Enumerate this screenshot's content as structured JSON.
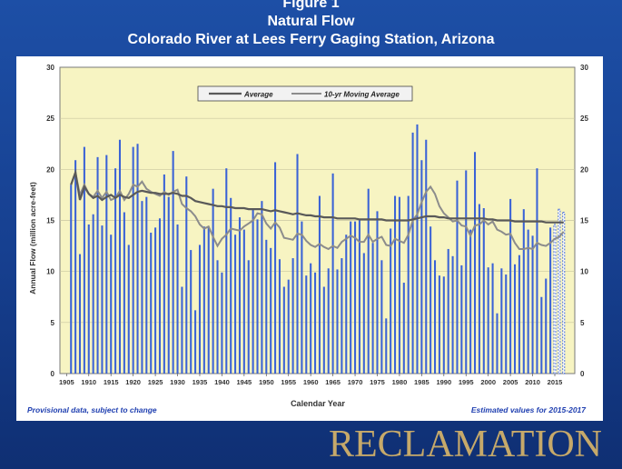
{
  "header": {
    "figure_label": "Figure 1",
    "title": "Natural Flow",
    "subtitle": "Colorado River at Lees Ferry Gaging Station, Arizona"
  },
  "logo_text": "RECLAMATION",
  "colors": {
    "background": "#1d4fa6",
    "plot_area": "#f7f4c2",
    "bars": "#3a62d6",
    "average_line": "#595959",
    "moving_average_line": "#8c8c8c",
    "logo": "#c6a96a"
  },
  "chart_data": {
    "type": "bar",
    "title": "Natural Flow",
    "subtitle": "Colorado River at Lees Ferry Gaging Station, Arizona",
    "xlabel": "Calendar Year",
    "ylabel": "Annual Flow (million acre-feet)",
    "ylim": [
      0,
      30
    ],
    "yticks": [
      "0",
      "5",
      "10",
      "15",
      "20",
      "25",
      "30"
    ],
    "xticks": [
      "1905",
      "1910",
      "1915",
      "1920",
      "1925",
      "1930",
      "1935",
      "1940",
      "1945",
      "1950",
      "1955",
      "1960",
      "1965",
      "1970",
      "1975",
      "1980",
      "1985",
      "1990",
      "1995",
      "2000",
      "2005",
      "2010",
      "2015"
    ],
    "grid": true,
    "legend_position": "top-center",
    "legend": [
      "Average",
      "10-yr Moving Average"
    ],
    "years": [
      1906,
      1907,
      1908,
      1909,
      1910,
      1911,
      1912,
      1913,
      1914,
      1915,
      1916,
      1917,
      1918,
      1919,
      1920,
      1921,
      1922,
      1923,
      1924,
      1925,
      1926,
      1927,
      1928,
      1929,
      1930,
      1931,
      1932,
      1933,
      1934,
      1935,
      1936,
      1937,
      1938,
      1939,
      1940,
      1941,
      1942,
      1943,
      1944,
      1945,
      1946,
      1947,
      1948,
      1949,
      1950,
      1951,
      1952,
      1953,
      1954,
      1955,
      1956,
      1957,
      1958,
      1959,
      1960,
      1961,
      1962,
      1963,
      1964,
      1965,
      1966,
      1967,
      1968,
      1969,
      1970,
      1971,
      1972,
      1973,
      1974,
      1975,
      1976,
      1977,
      1978,
      1979,
      1980,
      1981,
      1982,
      1983,
      1984,
      1985,
      1986,
      1987,
      1988,
      1989,
      1990,
      1991,
      1992,
      1993,
      1994,
      1995,
      1996,
      1997,
      1998,
      1999,
      2000,
      2001,
      2002,
      2003,
      2004,
      2005,
      2006,
      2007,
      2008,
      2009,
      2010,
      2011,
      2012,
      2013,
      2014,
      2015,
      2016,
      2017
    ],
    "series": [
      {
        "name": "Annual Flow",
        "values": [
          18.5,
          20.9,
          11.7,
          22.2,
          14.6,
          15.6,
          21.2,
          14.5,
          21.4,
          13.6,
          20.1,
          22.9,
          15.8,
          12.6,
          22.2,
          22.5,
          16.9,
          17.3,
          13.8,
          14.3,
          15.2,
          19.5,
          17.3,
          21.8,
          14.6,
          8.5,
          19.3,
          12.1,
          6.2,
          12.6,
          14.4,
          14.3,
          18.1,
          11.1,
          9.9,
          20.1,
          17.2,
          13.6,
          15.3,
          14.1,
          11.1,
          16.2,
          15.1,
          16.9,
          13.1,
          12.3,
          20.7,
          11.2,
          8.5,
          9.2,
          11.3,
          21.5,
          14.9,
          9.6,
          10.8,
          9.9,
          17.4,
          8.5,
          10.3,
          19.6,
          10.2,
          11.3,
          13.6,
          14.9,
          14.9,
          15.0,
          11.8,
          18.1,
          12.8,
          15.9,
          11.1,
          5.4,
          14.2,
          17.4,
          17.3,
          8.9,
          17.4,
          23.6,
          24.4,
          20.9,
          22.9,
          14.4,
          11.1,
          9.6,
          9.5,
          12.2,
          11.5,
          18.9,
          10.6,
          19.9,
          14.1,
          21.7,
          16.6,
          16.2,
          10.4,
          10.8,
          5.9,
          10.3,
          9.7,
          17.1,
          10.7,
          11.6,
          16.1,
          14.1,
          13.5,
          20.1,
          7.5,
          9.3,
          14.3,
          14.6,
          16.1,
          15.8
        ]
      },
      {
        "name": "Average",
        "values": [
          18.5,
          19.7,
          17.0,
          18.3,
          17.6,
          17.2,
          17.4,
          17.0,
          17.3,
          17.5,
          17.2,
          17.5,
          17.3,
          17.2,
          17.5,
          17.8,
          17.9,
          17.8,
          17.7,
          17.7,
          17.6,
          17.6,
          17.6,
          17.7,
          17.6,
          17.4,
          17.4,
          17.2,
          16.9,
          16.8,
          16.7,
          16.6,
          16.5,
          16.4,
          16.4,
          16.3,
          16.3,
          16.2,
          16.2,
          16.2,
          16.1,
          16.1,
          16.1,
          16.1,
          16.0,
          15.9,
          16.0,
          15.9,
          15.8,
          15.7,
          15.6,
          15.7,
          15.6,
          15.5,
          15.5,
          15.4,
          15.4,
          15.3,
          15.3,
          15.3,
          15.2,
          15.2,
          15.2,
          15.2,
          15.2,
          15.1,
          15.1,
          15.1,
          15.1,
          15.1,
          15.1,
          15.0,
          15.0,
          15.0,
          15.0,
          15.0,
          15.0,
          15.1,
          15.2,
          15.3,
          15.4,
          15.4,
          15.4,
          15.3,
          15.3,
          15.2,
          15.2,
          15.2,
          15.2,
          15.2,
          15.2,
          15.2,
          15.2,
          15.2,
          15.1,
          15.1,
          15.0,
          15.0,
          15.0,
          15.0,
          14.9,
          14.9,
          14.9,
          14.9,
          14.9,
          14.9,
          14.9,
          14.8,
          14.8,
          14.8,
          14.8,
          14.8
        ]
      },
      {
        "name": "10-yr Moving Average",
        "values": [
          18.5,
          19.7,
          17.5,
          18.5,
          17.6,
          17.3,
          17.9,
          17.2,
          17.8,
          17.0,
          17.2,
          17.9,
          17.0,
          17.6,
          18.5,
          18.3,
          18.8,
          18.1,
          17.8,
          17.6,
          17.4,
          17.8,
          17.5,
          17.8,
          18.0,
          16.6,
          16.2,
          15.9,
          15.4,
          14.6,
          14.2,
          14.4,
          13.4,
          12.5,
          13.2,
          13.6,
          14.2,
          14.1,
          14.0,
          14.4,
          14.7,
          15.0,
          15.7,
          15.6,
          14.7,
          14.2,
          14.8,
          14.3,
          13.3,
          13.2,
          13.1,
          13.7,
          13.6,
          13.0,
          12.6,
          12.4,
          12.7,
          12.4,
          12.2,
          12.5,
          12.3,
          12.9,
          13.2,
          13.5,
          13.3,
          12.9,
          12.9,
          13.6,
          12.9,
          13.2,
          13.4,
          12.6,
          12.5,
          13.2,
          13.0,
          12.8,
          13.6,
          15.0,
          15.6,
          16.8,
          17.8,
          18.3,
          17.6,
          16.4,
          15.7,
          15.3,
          14.9,
          15.0,
          14.5,
          14.4,
          13.5,
          14.5,
          14.6,
          15.0,
          14.6,
          14.9,
          14.1,
          13.9,
          13.6,
          13.7,
          12.8,
          12.2,
          12.2,
          12.3,
          12.2,
          12.8,
          12.6,
          12.5,
          12.8,
          13.2,
          13.4,
          13.9
        ]
      }
    ],
    "estimated_from_index": 109,
    "annotations": [
      "Provisional data, subject to change",
      "Estimated values for 2015-2017"
    ]
  }
}
